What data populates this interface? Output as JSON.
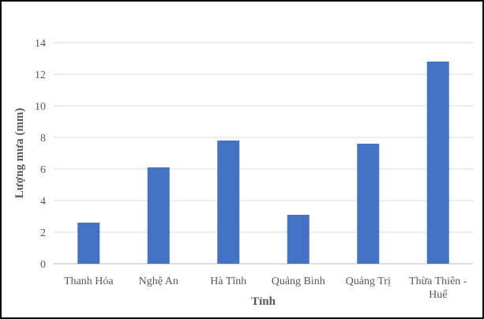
{
  "chart_data": {
    "type": "bar",
    "categories": [
      "Thanh Hóa",
      "Nghệ An",
      "Hà Tĩnh",
      "Quảng Bình",
      "Quảng Trị",
      "Thừa Thiên - Huế"
    ],
    "values": [
      2.6,
      6.1,
      7.8,
      3.1,
      7.6,
      12.8
    ],
    "title": "",
    "xlabel": "Tỉnh",
    "ylabel": "Lượng mưa (mm)",
    "ylim": [
      0,
      14
    ],
    "yticks": [
      0,
      2,
      4,
      6,
      8,
      10,
      12,
      14
    ],
    "grid": true,
    "bar_color": "#4472C4",
    "grid_color": "#D9D9D9",
    "text_color": "#595959"
  }
}
